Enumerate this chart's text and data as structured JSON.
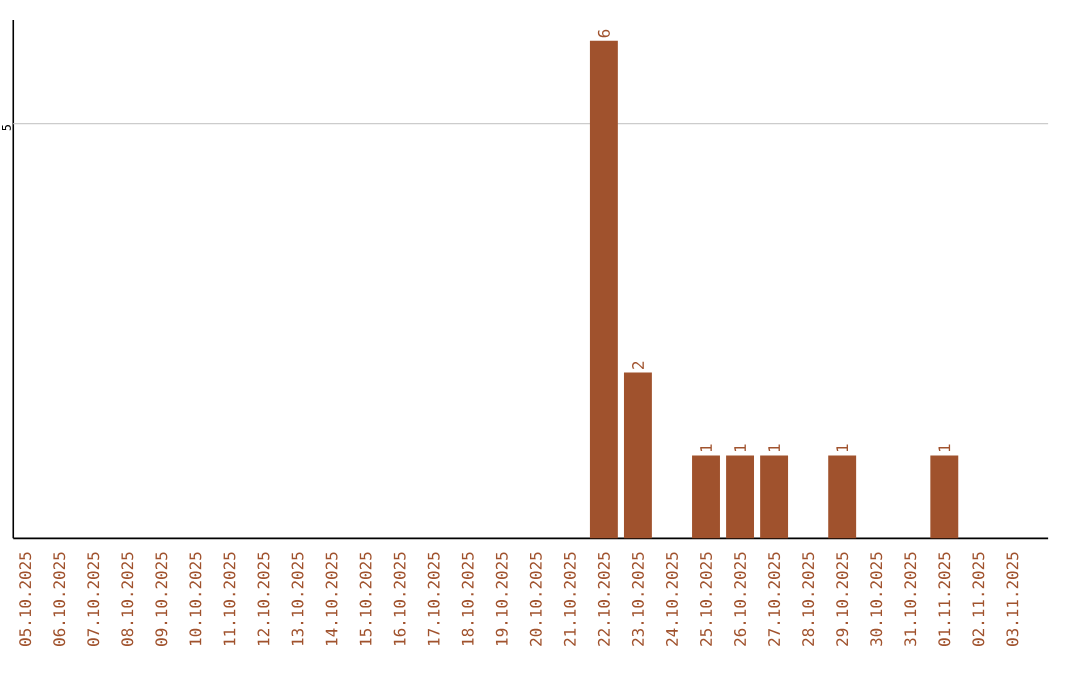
{
  "chart_data": {
    "type": "bar",
    "ylim": [
      0,
      6.25
    ],
    "categories": [
      "05.10.2025",
      "06.10.2025",
      "07.10.2025",
      "08.10.2025",
      "09.10.2025",
      "10.10.2025",
      "11.10.2025",
      "12.10.2025",
      "13.10.2025",
      "14.10.2025",
      "15.10.2025",
      "16.10.2025",
      "17.10.2025",
      "18.10.2025",
      "19.10.2025",
      "20.10.2025",
      "21.10.2025",
      "22.10.2025",
      "23.10.2025",
      "24.10.2025",
      "25.10.2025",
      "26.10.2025",
      "27.10.2025",
      "28.10.2025",
      "29.10.2025",
      "30.10.2025",
      "31.10.2025",
      "01.11.2025",
      "02.11.2025",
      "03.11.2025"
    ],
    "values": [
      null,
      null,
      null,
      null,
      null,
      null,
      null,
      null,
      null,
      null,
      null,
      null,
      null,
      null,
      null,
      null,
      null,
      6,
      2,
      null,
      1,
      1,
      1,
      null,
      1,
      null,
      null,
      1,
      null,
      null
    ],
    "data_labels": true,
    "color": "#a0522d",
    "ref_lines": [
      {
        "axis": "y",
        "value": 5,
        "label": "5",
        "color": "#cccccc"
      }
    ]
  }
}
